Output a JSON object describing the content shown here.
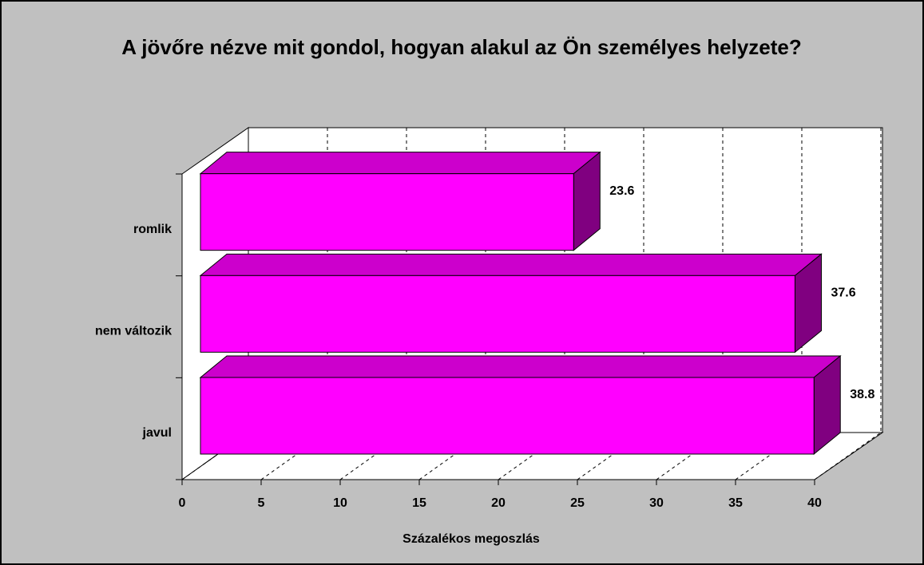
{
  "chart_data": {
    "type": "bar3d_horizontal",
    "title": "A jövőre nézve mit gondol, hogyan alakul az Ön személyes helyzete?",
    "categories": [
      "javul",
      "nem változik",
      "romlik"
    ],
    "values": [
      38.8,
      37.6,
      23.6
    ],
    "color": "#ff00ff",
    "xlabel": "Százalékos megoszlás",
    "xlim": [
      0,
      40
    ],
    "xticks": [
      0,
      5,
      10,
      15,
      20,
      25,
      30,
      35,
      40
    ],
    "grid": true
  }
}
